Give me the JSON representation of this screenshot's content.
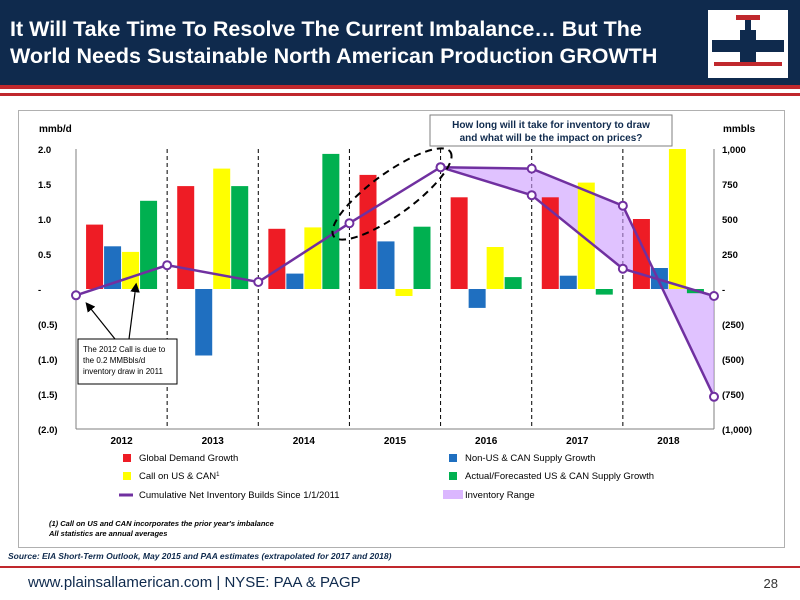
{
  "slide": {
    "title": "It Will Take Time To Resolve The Current Imbalance… But The World Needs Sustainable North American Production GROWTH",
    "source": "Source: EIA Short-Term Outlook, May 2015 and PAA estimates (extrapolated for 2017 and 2018)",
    "footer": "www.plainsallamerican.com | NYSE: PAA & PAGP",
    "page_number": "28",
    "colors": {
      "header": "#0f2a4d",
      "accent": "#c0282d"
    }
  },
  "chart_data": {
    "type": "bar",
    "categories": [
      "2012",
      "2013",
      "2014",
      "2015",
      "2016",
      "2017",
      "2018"
    ],
    "left_axis": {
      "label": "mmb/d",
      "ylim": [
        -2.0,
        2.0
      ],
      "ticks": [
        {
          "v": 2.0,
          "t": "2.0"
        },
        {
          "v": 1.5,
          "t": "1.5"
        },
        {
          "v": 1.0,
          "t": "1.0"
        },
        {
          "v": 0.5,
          "t": "0.5"
        },
        {
          "v": 0,
          "t": "-"
        },
        {
          "v": -0.5,
          "t": "(0.5)"
        },
        {
          "v": -1.0,
          "t": "(1.0)"
        },
        {
          "v": -1.5,
          "t": "(1.5)"
        },
        {
          "v": -2.0,
          "t": "(2.0)"
        }
      ]
    },
    "right_axis": {
      "label": "mmbls",
      "ylim": [
        -1000,
        1000
      ],
      "ticks": [
        {
          "v": 1000,
          "t": "1,000"
        },
        {
          "v": 750,
          "t": "750"
        },
        {
          "v": 500,
          "t": "500"
        },
        {
          "v": 250,
          "t": "250"
        },
        {
          "v": 0,
          "t": "-"
        },
        {
          "v": -250,
          "t": "(250)"
        },
        {
          "v": -500,
          "t": "(500)"
        },
        {
          "v": -750,
          "t": "(750)"
        },
        {
          "v": -1000,
          "t": "(1,000)"
        }
      ]
    },
    "series": [
      {
        "name": "Global Demand Growth",
        "color": "#ee1c25",
        "values": [
          0.92,
          1.47,
          0.86,
          1.63,
          1.31,
          1.31,
          1.0
        ]
      },
      {
        "name": "Non-US & CAN Supply Growth",
        "color": "#1f6fc0",
        "values": [
          0.61,
          -0.95,
          0.22,
          0.68,
          -0.27,
          0.19,
          0.3
        ]
      },
      {
        "name": "Call on US & CAN",
        "legend_sup": "1",
        "color": "#ffff00",
        "values": [
          0.53,
          1.72,
          0.88,
          -0.1,
          0.6,
          1.52,
          2.0
        ]
      },
      {
        "name": "Actual/Forecasted US & CAN Supply Growth",
        "color": "#00b050",
        "values": [
          1.26,
          1.47,
          1.93,
          0.89,
          0.17,
          -0.08,
          -0.06
        ]
      }
    ],
    "lines": [
      {
        "name": "Cumulative Net Inventory Builds Since 1/1/2011",
        "color": "#7030a0",
        "axis": "right",
        "points": [
          [
            0,
            -45
          ],
          [
            1,
            170
          ],
          [
            2,
            50
          ],
          [
            3,
            470
          ],
          [
            4,
            870
          ],
          [
            5,
            670
          ],
          [
            6,
            145
          ],
          [
            7,
            -50
          ]
        ]
      },
      {
        "name": "upper",
        "legend": false,
        "color": "#7030a0",
        "axis": "right",
        "points": [
          [
            4,
            870
          ],
          [
            5,
            860
          ],
          [
            6,
            595
          ],
          [
            7,
            -770
          ]
        ]
      }
    ],
    "range_name": "Inventory Range",
    "range_color": "#cc99ff",
    "callouts": {
      "question": "How long will it take for inventory to draw and what will be the impact on prices?",
      "note": "The 2012 Call is due to the 0.2 MMBbls/d inventory draw in 2011"
    },
    "footnotes": [
      "(1) Call on US and CAN incorporates the prior year's imbalance",
      "All statistics are annual averages"
    ]
  }
}
